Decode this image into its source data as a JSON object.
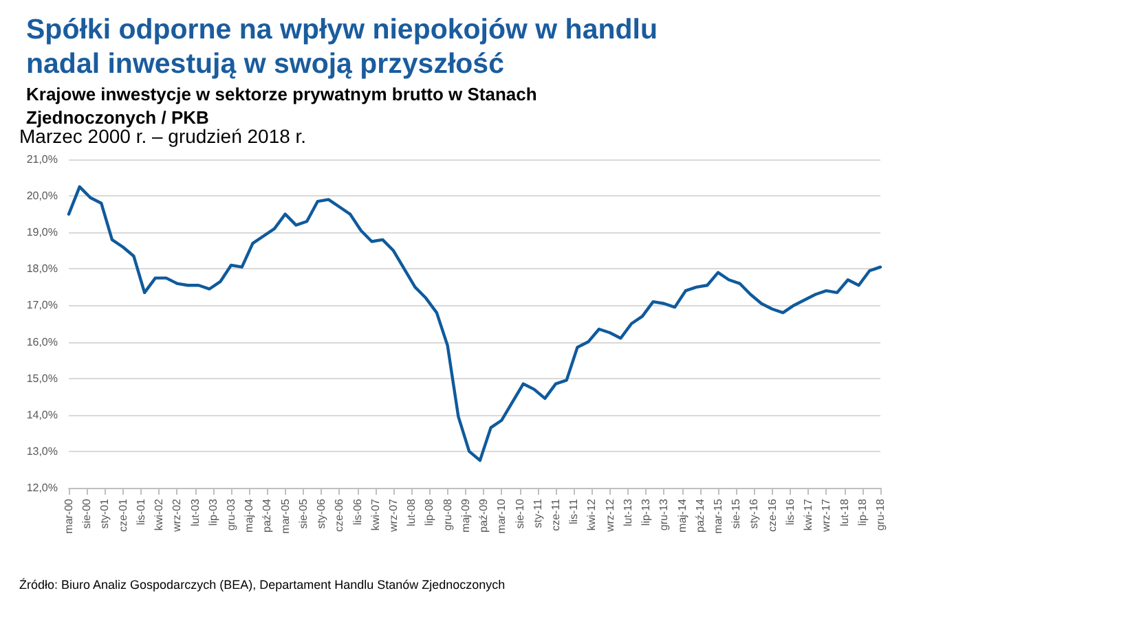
{
  "chart_data": {
    "type": "line",
    "title": "Spółki odporne na wpływ niepokojów w handlu nadal inwestują w swoją przyszłość",
    "subtitle": "Krajowe inwestycje w sektorze prywatnym brutto w Stanach Zjednoczonych / PKB",
    "annotations": [
      "Marzec 2000 r. – grudzień 2018 r.",
      "Źródło: Biuro Analiz Gospodarczych (BEA), Departament Handlu Stanów Zjednoczonych"
    ],
    "x": [
      "2000-03",
      "2000-06",
      "2000-09",
      "2000-12",
      "2001-03",
      "2001-06",
      "2001-09",
      "2001-12",
      "2002-03",
      "2002-06",
      "2002-09",
      "2002-12",
      "2003-03",
      "2003-06",
      "2003-09",
      "2003-12",
      "2004-03",
      "2004-06",
      "2004-09",
      "2004-12",
      "2005-03",
      "2005-06",
      "2005-09",
      "2005-12",
      "2006-03",
      "2006-06",
      "2006-09",
      "2006-12",
      "2007-03",
      "2007-06",
      "2007-09",
      "2007-12",
      "2008-03",
      "2008-06",
      "2008-09",
      "2008-12",
      "2009-03",
      "2009-06",
      "2009-09",
      "2009-12",
      "2010-03",
      "2010-06",
      "2010-09",
      "2010-12",
      "2011-03",
      "2011-06",
      "2011-09",
      "2011-12",
      "2012-03",
      "2012-06",
      "2012-09",
      "2012-12",
      "2013-03",
      "2013-06",
      "2013-09",
      "2013-12",
      "2014-03",
      "2014-06",
      "2014-09",
      "2014-12",
      "2015-03",
      "2015-06",
      "2015-09",
      "2015-12",
      "2016-03",
      "2016-06",
      "2016-09",
      "2016-12",
      "2017-03",
      "2017-06",
      "2017-09",
      "2017-12",
      "2018-03",
      "2018-06",
      "2018-09",
      "2018-12"
    ],
    "series": [
      {
        "color": "#0f5a9c",
        "values": [
          19.5,
          20.25,
          19.95,
          19.8,
          18.8,
          18.6,
          18.35,
          17.35,
          17.75,
          17.75,
          17.6,
          17.55,
          17.55,
          17.45,
          17.65,
          18.1,
          18.05,
          18.7,
          18.9,
          19.1,
          19.5,
          19.2,
          19.3,
          19.85,
          19.9,
          19.7,
          19.5,
          19.05,
          18.75,
          18.8,
          18.5,
          18.0,
          17.5,
          17.2,
          16.8,
          15.9,
          13.95,
          13.0,
          12.75,
          13.65,
          13.85,
          14.35,
          14.85,
          14.7,
          14.45,
          14.85,
          14.95,
          15.85,
          16.0,
          16.35,
          16.25,
          16.1,
          16.5,
          16.7,
          17.1,
          17.05,
          16.95,
          17.4,
          17.5,
          17.55,
          17.9,
          17.7,
          17.6,
          17.3,
          17.05,
          16.9,
          16.8,
          17.0,
          17.15,
          17.3,
          17.4,
          17.35,
          17.7,
          17.55,
          17.95,
          18.05
        ]
      }
    ],
    "xlim": [
      "2000-03",
      "2018-12"
    ],
    "xticks": [
      {
        "value": "2000-03",
        "label": "mar-00"
      },
      {
        "value": "2000-08",
        "label": "sie-00"
      },
      {
        "value": "2001-01",
        "label": "sty-01"
      },
      {
        "value": "2001-06",
        "label": "cze-01"
      },
      {
        "value": "2001-11",
        "label": "lis-01"
      },
      {
        "value": "2002-04",
        "label": "kwi-02"
      },
      {
        "value": "2002-09",
        "label": "wrz-02"
      },
      {
        "value": "2003-02",
        "label": "lut-03"
      },
      {
        "value": "2003-07",
        "label": "lip-03"
      },
      {
        "value": "2003-12",
        "label": "gru-03"
      },
      {
        "value": "2004-05",
        "label": "maj-04"
      },
      {
        "value": "2004-10",
        "label": "paź-04"
      },
      {
        "value": "2005-03",
        "label": "mar-05"
      },
      {
        "value": "2005-08",
        "label": "sie-05"
      },
      {
        "value": "2006-01",
        "label": "sty-06"
      },
      {
        "value": "2006-06",
        "label": "cze-06"
      },
      {
        "value": "2006-11",
        "label": "lis-06"
      },
      {
        "value": "2007-04",
        "label": "kwi-07"
      },
      {
        "value": "2007-09",
        "label": "wrz-07"
      },
      {
        "value": "2008-02",
        "label": "lut-08"
      },
      {
        "value": "2008-07",
        "label": "lip-08"
      },
      {
        "value": "2008-12",
        "label": "gru-08"
      },
      {
        "value": "2009-05",
        "label": "maj-09"
      },
      {
        "value": "2009-10",
        "label": "paź-09"
      },
      {
        "value": "2010-03",
        "label": "mar-10"
      },
      {
        "value": "2010-08",
        "label": "sie-10"
      },
      {
        "value": "2011-01",
        "label": "sty-11"
      },
      {
        "value": "2011-06",
        "label": "cze-11"
      },
      {
        "value": "2011-11",
        "label": "lis-11"
      },
      {
        "value": "2012-04",
        "label": "kwi-12"
      },
      {
        "value": "2012-09",
        "label": "wrz-12"
      },
      {
        "value": "2013-02",
        "label": "lut-13"
      },
      {
        "value": "2013-07",
        "label": "lip-13"
      },
      {
        "value": "2013-12",
        "label": "gru-13"
      },
      {
        "value": "2014-05",
        "label": "maj-14"
      },
      {
        "value": "2014-10",
        "label": "paź-14"
      },
      {
        "value": "2015-03",
        "label": "mar-15"
      },
      {
        "value": "2015-08",
        "label": "sie-15"
      },
      {
        "value": "2016-01",
        "label": "sty-16"
      },
      {
        "value": "2016-06",
        "label": "cze-16"
      },
      {
        "value": "2016-11",
        "label": "lis-16"
      },
      {
        "value": "2017-04",
        "label": "kwi-17"
      },
      {
        "value": "2017-09",
        "label": "wrz-17"
      },
      {
        "value": "2018-02",
        "label": "lut-18"
      },
      {
        "value": "2018-07",
        "label": "lip-18"
      },
      {
        "value": "2018-12",
        "label": "gru-18"
      }
    ],
    "ylim": [
      12,
      21
    ],
    "yticks": [
      {
        "value": 12,
        "label": "12,0%"
      },
      {
        "value": 13,
        "label": "13,0%"
      },
      {
        "value": 14,
        "label": "14,0%"
      },
      {
        "value": 15,
        "label": "15,0%"
      },
      {
        "value": 16,
        "label": "16,0%"
      },
      {
        "value": 17,
        "label": "17,0%"
      },
      {
        "value": 18,
        "label": "18,0%"
      },
      {
        "value": 19,
        "label": "19,0%"
      },
      {
        "value": 20,
        "label": "20,0%"
      },
      {
        "value": 21,
        "label": "21,0%"
      }
    ],
    "grid": "y",
    "marker": "none",
    "line_style": "solid"
  }
}
